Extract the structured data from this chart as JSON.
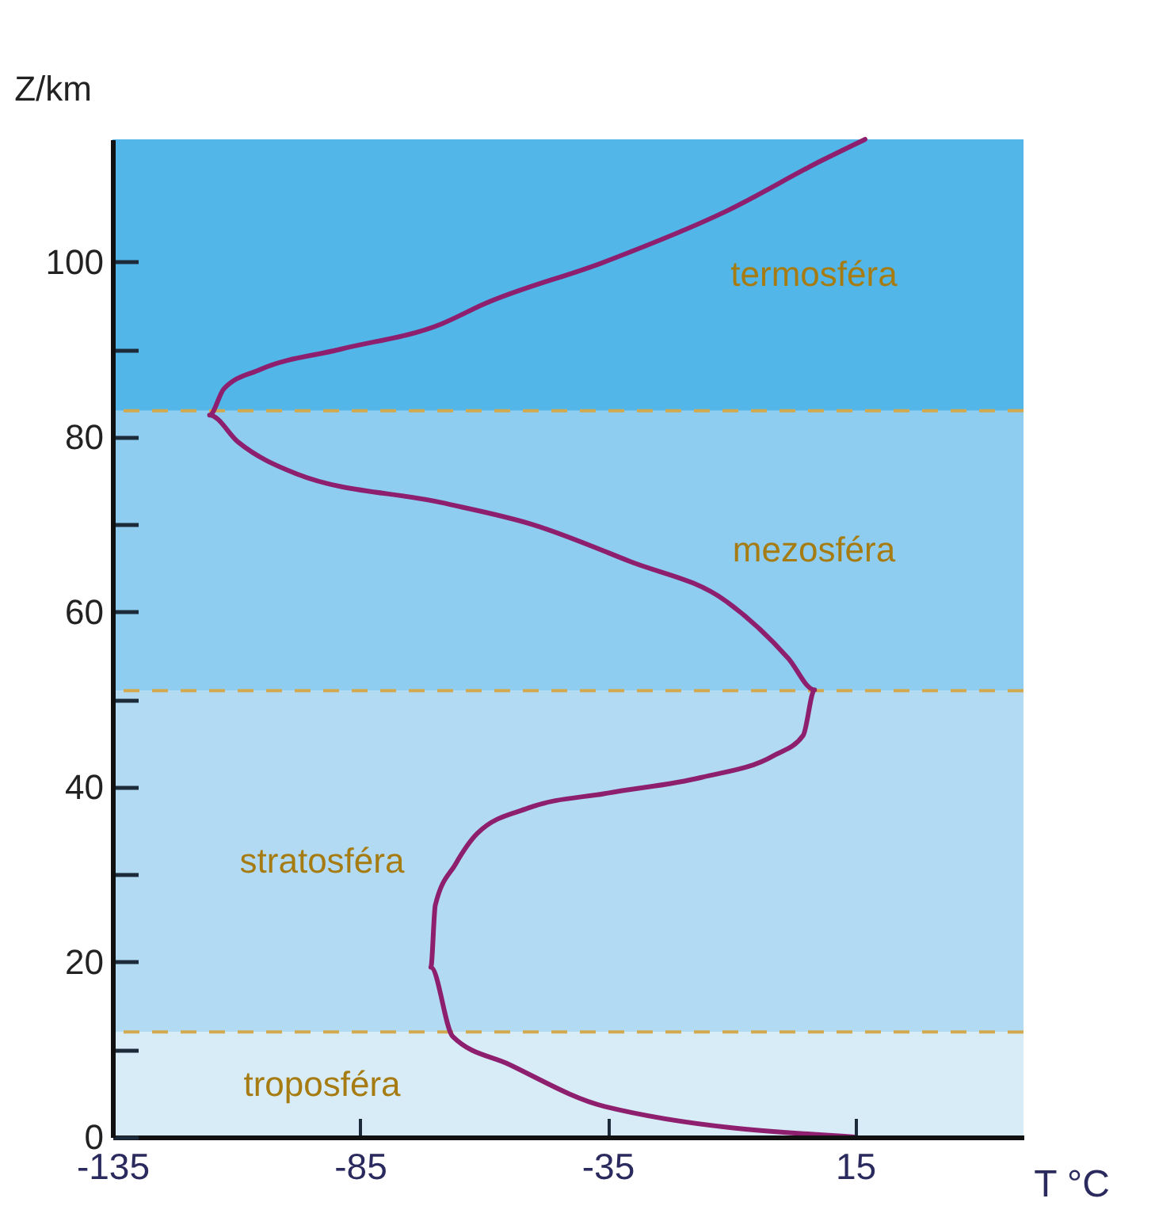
{
  "chart_data": {
    "type": "line",
    "xlabel": "T °C",
    "ylabel": "Z/km",
    "xlim": [
      -135,
      49
    ],
    "ylim": [
      0,
      114
    ],
    "xticks": [
      -135,
      -85,
      -35,
      15
    ],
    "yticks": [
      0,
      {
        "value": 10,
        "label": null
      },
      20,
      {
        "value": 30,
        "label": null
      },
      40,
      {
        "value": 50,
        "label": null
      },
      60,
      {
        "value": 70,
        "label": null
      },
      80,
      {
        "value": 90,
        "label": null
      },
      100
    ],
    "grid": false,
    "marker": "none",
    "line_style": "solid",
    "series": [
      {
        "color": "#8e1f6e",
        "x": [
          15,
          -35.6,
          -54.9,
          -66.3,
          -70.7,
          -69.8,
          -65.7,
          -61.3,
          -51,
          -35,
          -16,
          -1.4,
          4.5,
          6.8,
          1.5,
          -11,
          -30.6,
          -50.2,
          -68.6,
          -97.9,
          -109.6,
          -115.4,
          -112.5,
          -105.2,
          -89.1,
          -68.6,
          -59.9,
          -35.6,
          -11,
          8.3,
          17
        ],
        "values": [
          0,
          3.5,
          8.3,
          11.5,
          19.4,
          26.5,
          31.2,
          34.7,
          37.6,
          39.3,
          41.1,
          43.6,
          45.9,
          51.1,
          54.7,
          61.2,
          65.8,
          70,
          72.5,
          75.8,
          79.4,
          82.5,
          85.5,
          87.7,
          90,
          92.9,
          95.2,
          100,
          105.8,
          111.6,
          114
        ]
      }
    ],
    "bands": [
      {
        "axis": "y",
        "from": 0,
        "to": 12,
        "label": "troposféra",
        "color": "#d8ecf7"
      },
      {
        "axis": "y",
        "from": 12,
        "to": 51,
        "label": "stratosféra",
        "color": "#b2dbf3"
      },
      {
        "axis": "y",
        "from": 51,
        "to": 83,
        "label": "mezosféra",
        "color": "#8ecdf0"
      },
      {
        "axis": "y",
        "from": 83,
        "to": 114,
        "label": "termosféra",
        "color": "#52b6e8"
      }
    ],
    "ref_lines": [
      {
        "axis": "y",
        "value": 12,
        "color": "#d2a94e",
        "line_style": "dashed"
      },
      {
        "axis": "y",
        "value": 51,
        "color": "#d2a94e",
        "line_style": "dashed"
      },
      {
        "axis": "y",
        "value": 83,
        "color": "#d2a94e",
        "line_style": "dashed"
      }
    ]
  }
}
